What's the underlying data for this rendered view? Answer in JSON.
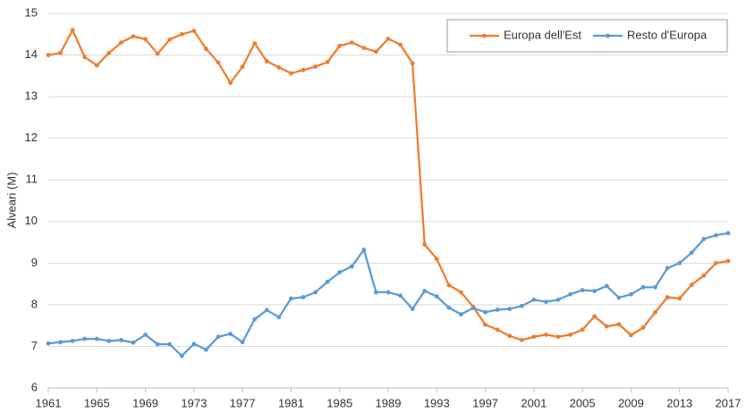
{
  "chart_data": {
    "type": "line",
    "ylabel": "Alveari (M)",
    "x": [
      1961,
      1962,
      1963,
      1964,
      1965,
      1966,
      1967,
      1968,
      1969,
      1970,
      1971,
      1972,
      1973,
      1974,
      1975,
      1976,
      1977,
      1978,
      1979,
      1980,
      1981,
      1982,
      1983,
      1984,
      1985,
      1986,
      1987,
      1988,
      1989,
      1990,
      1991,
      1992,
      1993,
      1994,
      1995,
      1996,
      1997,
      1998,
      1999,
      2000,
      2001,
      2002,
      2003,
      2004,
      2005,
      2006,
      2007,
      2008,
      2009,
      2010,
      2011,
      2012,
      2013,
      2014,
      2015,
      2016,
      2017
    ],
    "series": [
      {
        "name": "Europa dell'Est",
        "color": "#ED7D31",
        "values": [
          14.0,
          14.05,
          14.6,
          13.95,
          13.75,
          14.05,
          14.3,
          14.45,
          14.38,
          14.03,
          14.37,
          14.5,
          14.58,
          14.15,
          13.82,
          13.33,
          13.72,
          14.28,
          13.85,
          13.7,
          13.56,
          13.64,
          13.72,
          13.83,
          14.22,
          14.3,
          14.17,
          14.08,
          14.39,
          14.25,
          13.8,
          9.45,
          9.1,
          8.47,
          8.3,
          7.95,
          7.52,
          7.4,
          7.25,
          7.15,
          7.23,
          7.28,
          7.23,
          7.28,
          7.4,
          7.72,
          7.48,
          7.53,
          7.27,
          7.45,
          7.82,
          8.18,
          8.15,
          8.48,
          8.7,
          9.0,
          9.05
        ]
      },
      {
        "name": "Resto d'Europa",
        "color": "#5B9BD5",
        "values": [
          7.07,
          7.1,
          7.13,
          7.18,
          7.18,
          7.13,
          7.15,
          7.09,
          7.28,
          7.05,
          7.05,
          6.77,
          7.06,
          6.92,
          7.23,
          7.3,
          7.1,
          7.65,
          7.87,
          7.7,
          8.15,
          8.18,
          8.3,
          8.55,
          8.78,
          8.92,
          9.32,
          8.3,
          8.3,
          8.22,
          7.9,
          8.33,
          8.2,
          7.93,
          7.77,
          7.92,
          7.82,
          7.88,
          7.9,
          7.97,
          8.12,
          8.07,
          8.12,
          8.25,
          8.35,
          8.33,
          8.45,
          8.17,
          8.25,
          8.42,
          8.42,
          8.88,
          9.0,
          9.25,
          9.58,
          9.67,
          9.72
        ]
      }
    ],
    "xlim": [
      1961,
      2017
    ],
    "xticks": [
      1961,
      1965,
      1969,
      1973,
      1977,
      1981,
      1985,
      1989,
      1993,
      1997,
      2001,
      2005,
      2009,
      2013,
      2017
    ],
    "ylim": [
      6,
      15
    ],
    "yticks": [
      6,
      7,
      8,
      9,
      10,
      11,
      12,
      13,
      14,
      15
    ],
    "grid": true,
    "legend": "upper right"
  }
}
